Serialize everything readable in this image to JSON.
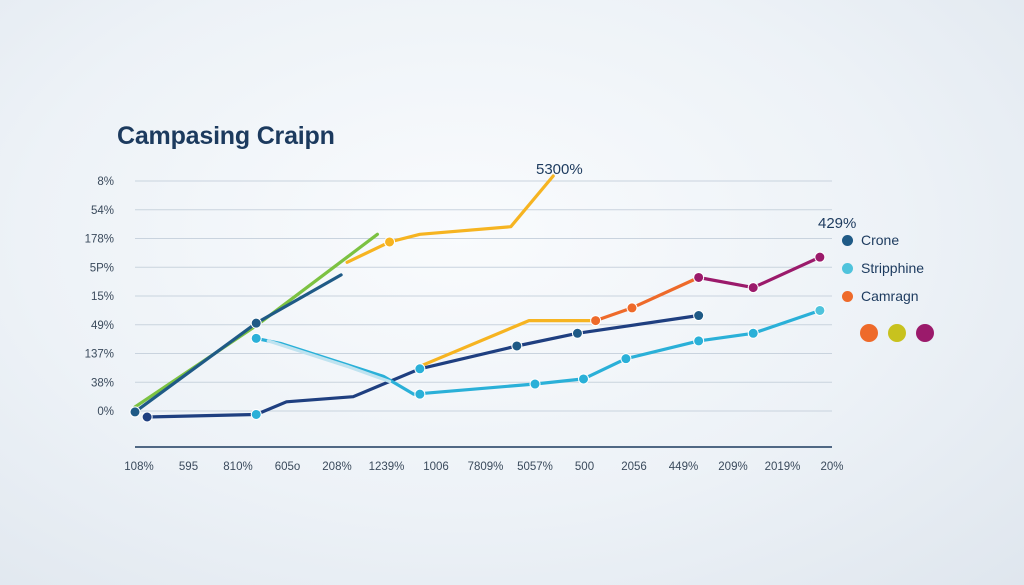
{
  "chart_data": {
    "type": "line",
    "title": "Campasing Craipn",
    "y_tick_labels": [
      "8%",
      "54%",
      "178%",
      "5P%",
      "15%",
      "49%",
      "137%",
      "38%",
      "0%"
    ],
    "x_tick_labels": [
      "108%",
      "595",
      "810%",
      "605o",
      "208%",
      "1239%",
      "1006",
      "7809%",
      "5057%",
      "500",
      "2056",
      "449%",
      "209%",
      "2019%",
      "20%"
    ],
    "callouts": [
      "5300%",
      "429%"
    ],
    "grid": true,
    "legend_position": "right",
    "legend": [
      {
        "label": "Crone",
        "color": "#1f5a86"
      },
      {
        "label": "Stripphine",
        "color": "#4fc3dc"
      },
      {
        "label": "Camragn",
        "color": "#ee6a2a"
      }
    ],
    "legend_circles": [
      "#ee6a2a",
      "#c8c21e",
      "#9b1a6b"
    ],
    "series": [
      {
        "color": "#7cc242",
        "points": [
          [
            0.0,
            0.4
          ],
          [
            2.0,
            3.6
          ],
          [
            3.5,
            6.3
          ],
          [
            4.0,
            7.2
          ]
        ]
      },
      {
        "color": "#f6b421",
        "points": [
          [
            3.5,
            6.1
          ],
          [
            4.2,
            6.9
          ],
          [
            4.7,
            7.2
          ],
          [
            6.2,
            7.5
          ],
          [
            6.9,
            9.5
          ]
        ]
      },
      {
        "color": "#f6b421",
        "points": [
          [
            4.7,
            2.0
          ],
          [
            6.5,
            3.8
          ],
          [
            7.6,
            3.8
          ]
        ]
      },
      {
        "color": "#1f5a86",
        "points": [
          [
            0.0,
            0.2
          ],
          [
            2.0,
            3.7
          ],
          [
            3.4,
            5.6
          ]
        ]
      },
      {
        "color": "#1f3f80",
        "points": [
          [
            0.2,
            0.0
          ],
          [
            2.0,
            0.1
          ],
          [
            2.5,
            0.6
          ],
          [
            3.6,
            0.8
          ],
          [
            4.7,
            1.9
          ],
          [
            6.3,
            2.8
          ],
          [
            7.3,
            3.3
          ],
          [
            9.3,
            4.0
          ]
        ]
      },
      {
        "color": "#2ab0d8",
        "points": [
          [
            2.0,
            3.1
          ],
          [
            2.4,
            2.9
          ],
          [
            4.1,
            1.6
          ],
          [
            4.6,
            0.9
          ],
          [
            6.6,
            1.3
          ],
          [
            7.4,
            1.5
          ],
          [
            8.1,
            2.3
          ],
          [
            9.3,
            3.0
          ],
          [
            10.2,
            3.3
          ],
          [
            11.3,
            4.2
          ]
        ]
      },
      {
        "color": "#bfe3f0",
        "points": [
          [
            2.2,
            3.0
          ],
          [
            3.5,
            2.0
          ],
          [
            4.2,
            1.4
          ]
        ]
      },
      {
        "color": "#ee6a2a",
        "points": [
          [
            7.6,
            3.8
          ],
          [
            8.2,
            4.3
          ],
          [
            9.3,
            5.5
          ]
        ]
      },
      {
        "color": "#9b1a6b",
        "points": [
          [
            9.3,
            5.5
          ],
          [
            10.2,
            5.1
          ],
          [
            11.3,
            6.3
          ]
        ]
      }
    ],
    "point_markers": [
      {
        "x": 0.0,
        "y": 0.2,
        "color": "#1f5a86"
      },
      {
        "x": 0.2,
        "y": 0.0,
        "color": "#1f3f80"
      },
      {
        "x": 2.0,
        "y": 3.7,
        "color": "#1f5a86"
      },
      {
        "x": 2.0,
        "y": 3.1,
        "color": "#2ab0d8"
      },
      {
        "x": 2.0,
        "y": 0.1,
        "color": "#2ab0d8"
      },
      {
        "x": 4.2,
        "y": 6.9,
        "color": "#f6b421"
      },
      {
        "x": 4.7,
        "y": 1.9,
        "color": "#2ab0d8"
      },
      {
        "x": 4.7,
        "y": 0.9,
        "color": "#2ab0d8"
      },
      {
        "x": 6.3,
        "y": 2.8,
        "color": "#1f5a86"
      },
      {
        "x": 6.6,
        "y": 1.3,
        "color": "#2ab0d8"
      },
      {
        "x": 7.4,
        "y": 1.5,
        "color": "#2ab0d8"
      },
      {
        "x": 7.6,
        "y": 3.8,
        "color": "#ee6a2a"
      },
      {
        "x": 7.3,
        "y": 3.3,
        "color": "#1f5a86"
      },
      {
        "x": 8.1,
        "y": 2.3,
        "color": "#2ab0d8"
      },
      {
        "x": 8.2,
        "y": 4.3,
        "color": "#ee6a2a"
      },
      {
        "x": 9.3,
        "y": 4.0,
        "color": "#1f5a86"
      },
      {
        "x": 9.3,
        "y": 5.5,
        "color": "#9b1a6b"
      },
      {
        "x": 9.3,
        "y": 3.0,
        "color": "#2ab0d8"
      },
      {
        "x": 10.2,
        "y": 5.1,
        "color": "#9b1a6b"
      },
      {
        "x": 10.2,
        "y": 3.3,
        "color": "#2ab0d8"
      },
      {
        "x": 11.3,
        "y": 6.3,
        "color": "#9b1a6b"
      },
      {
        "x": 11.3,
        "y": 4.2,
        "color": "#4fc3dc"
      }
    ],
    "xlim": [
      0,
      11.5
    ],
    "ylim": [
      0,
      9.5
    ]
  }
}
